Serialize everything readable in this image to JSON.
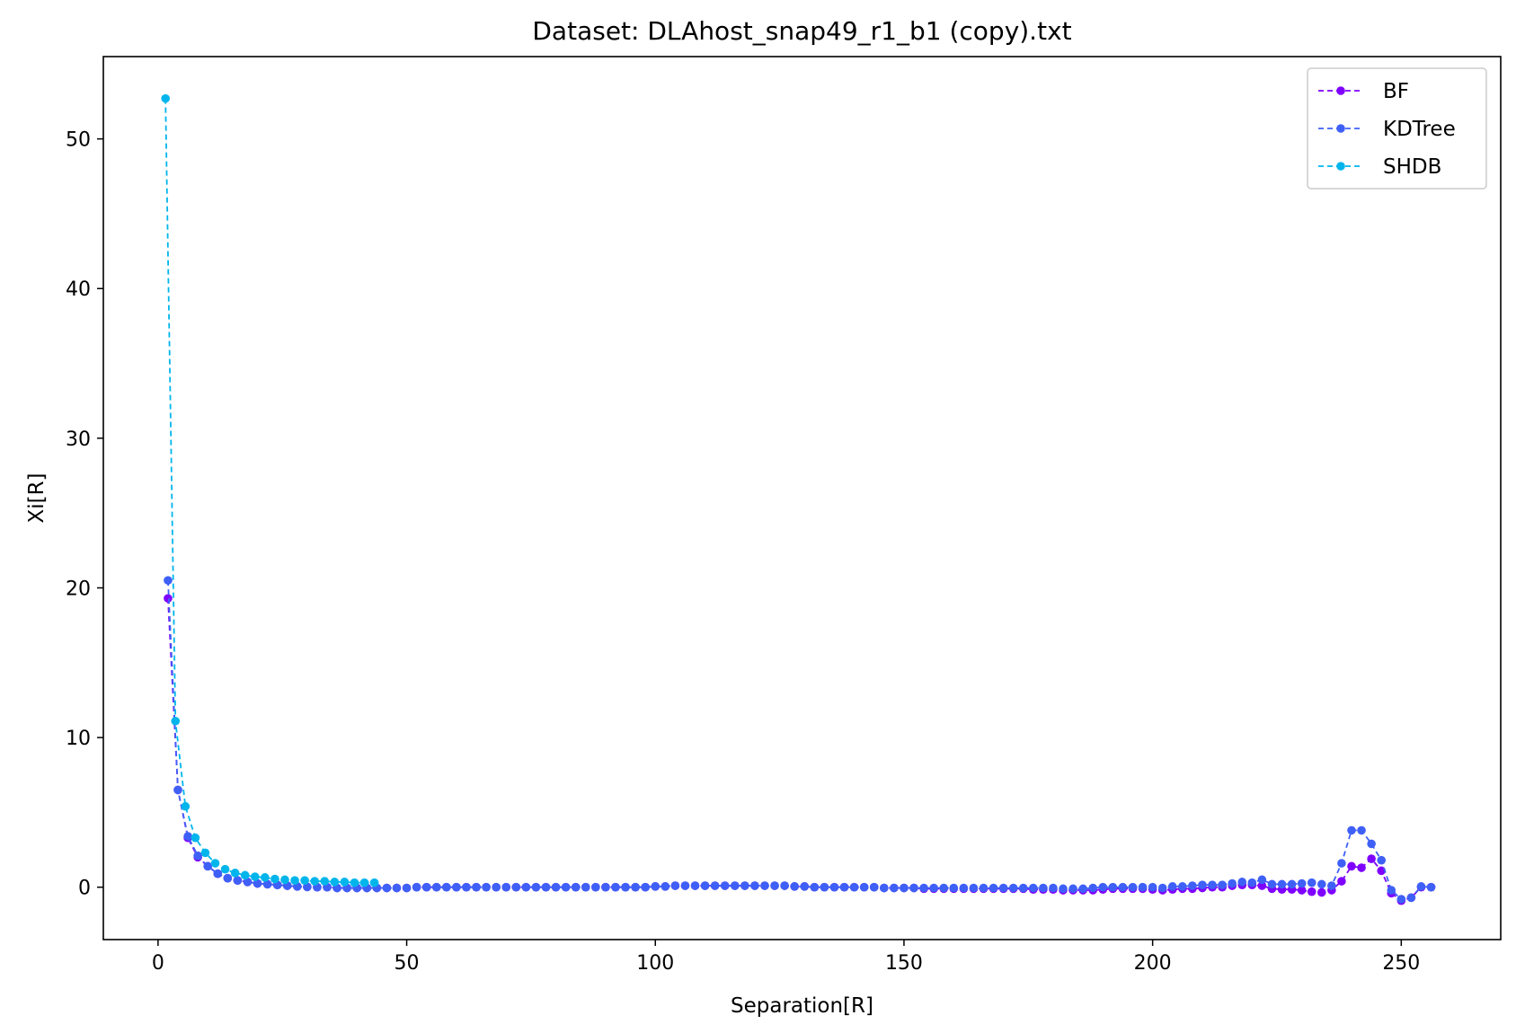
{
  "chart_data": {
    "type": "line",
    "title": "Dataset: DLAhost_snap49_r1_b1 (copy).txt",
    "xlabel": "Separation[R]",
    "ylabel": "Xi[R]",
    "xlim": [
      -11,
      270
    ],
    "ylim": [
      -3.5,
      55.5
    ],
    "xticks": [
      0,
      50,
      100,
      150,
      200,
      250
    ],
    "yticks": [
      0,
      10,
      20,
      30,
      40,
      50
    ],
    "grid": false,
    "legend_position": "top-right",
    "series": [
      {
        "name": "BF",
        "color": "#7f00ff",
        "style": "dashed-marker",
        "x": [
          2,
          4,
          6,
          8,
          10,
          12,
          14,
          16,
          18,
          20,
          22,
          24,
          26,
          28,
          30,
          32,
          34,
          36,
          38,
          40,
          42,
          44,
          46,
          48,
          50,
          52,
          54,
          56,
          58,
          60,
          62,
          64,
          66,
          68,
          70,
          72,
          74,
          76,
          78,
          80,
          82,
          84,
          86,
          88,
          90,
          92,
          94,
          96,
          98,
          100,
          102,
          104,
          106,
          108,
          110,
          112,
          114,
          116,
          118,
          120,
          122,
          124,
          126,
          128,
          130,
          132,
          134,
          136,
          138,
          140,
          142,
          144,
          146,
          148,
          150,
          152,
          154,
          156,
          158,
          160,
          162,
          164,
          166,
          168,
          170,
          172,
          174,
          176,
          178,
          180,
          182,
          184,
          186,
          188,
          190,
          192,
          194,
          196,
          198,
          200,
          202,
          204,
          206,
          208,
          210,
          212,
          214,
          216,
          218,
          220,
          222,
          224,
          226,
          228,
          230,
          232,
          234,
          236,
          238,
          240,
          242,
          244,
          246,
          248,
          250,
          252,
          254,
          256
        ],
        "y": [
          19.3,
          6.5,
          3.3,
          2.0,
          1.4,
          0.9,
          0.6,
          0.45,
          0.35,
          0.25,
          0.2,
          0.15,
          0.1,
          0.05,
          0.02,
          0.0,
          0.0,
          -0.05,
          -0.05,
          -0.05,
          -0.05,
          -0.05,
          -0.05,
          -0.05,
          -0.05,
          0.0,
          0.0,
          0.0,
          0.0,
          0.0,
          0.0,
          0.0,
          0.0,
          0.0,
          0.0,
          0.0,
          0.0,
          0.0,
          0.0,
          0.0,
          0.0,
          0.0,
          0.0,
          0.0,
          0.0,
          0.0,
          0.0,
          0.0,
          0.0,
          0.05,
          0.05,
          0.1,
          0.1,
          0.1,
          0.1,
          0.1,
          0.1,
          0.1,
          0.1,
          0.1,
          0.1,
          0.1,
          0.1,
          0.05,
          0.05,
          0.0,
          0.0,
          0.0,
          0.0,
          0.0,
          0.0,
          0.0,
          -0.05,
          -0.05,
          -0.05,
          -0.05,
          -0.1,
          -0.1,
          -0.1,
          -0.1,
          -0.1,
          -0.1,
          -0.1,
          -0.1,
          -0.1,
          -0.1,
          -0.1,
          -0.15,
          -0.15,
          -0.15,
          -0.2,
          -0.2,
          -0.2,
          -0.2,
          -0.15,
          -0.1,
          -0.1,
          -0.1,
          -0.1,
          -0.15,
          -0.2,
          -0.15,
          -0.1,
          -0.1,
          -0.05,
          0.0,
          0.0,
          0.1,
          0.15,
          0.15,
          0.1,
          -0.1,
          -0.15,
          -0.15,
          -0.2,
          -0.3,
          -0.35,
          -0.2,
          0.4,
          1.4,
          1.3,
          1.9,
          1.1,
          -0.4,
          -0.9,
          -0.7,
          0.0,
          0.0
        ]
      },
      {
        "name": "KDTree",
        "color": "#3f60f6",
        "style": "dashed-marker",
        "x": [
          2,
          4,
          6,
          8,
          10,
          12,
          14,
          16,
          18,
          20,
          22,
          24,
          26,
          28,
          30,
          32,
          34,
          36,
          38,
          40,
          42,
          44,
          46,
          48,
          50,
          52,
          54,
          56,
          58,
          60,
          62,
          64,
          66,
          68,
          70,
          72,
          74,
          76,
          78,
          80,
          82,
          84,
          86,
          88,
          90,
          92,
          94,
          96,
          98,
          100,
          102,
          104,
          106,
          108,
          110,
          112,
          114,
          116,
          118,
          120,
          122,
          124,
          126,
          128,
          130,
          132,
          134,
          136,
          138,
          140,
          142,
          144,
          146,
          148,
          150,
          152,
          154,
          156,
          158,
          160,
          162,
          164,
          166,
          168,
          170,
          172,
          174,
          176,
          178,
          180,
          182,
          184,
          186,
          188,
          190,
          192,
          194,
          196,
          198,
          200,
          202,
          204,
          206,
          208,
          210,
          212,
          214,
          216,
          218,
          220,
          222,
          224,
          226,
          228,
          230,
          232,
          234,
          236,
          238,
          240,
          242,
          244,
          246,
          248,
          250,
          252,
          254,
          256
        ],
        "y": [
          20.5,
          6.5,
          3.4,
          2.1,
          1.4,
          0.9,
          0.6,
          0.45,
          0.35,
          0.25,
          0.2,
          0.15,
          0.1,
          0.05,
          0.02,
          0.0,
          0.0,
          -0.05,
          -0.05,
          -0.05,
          -0.05,
          -0.05,
          -0.05,
          -0.05,
          -0.05,
          0.0,
          0.0,
          0.0,
          0.0,
          0.0,
          0.0,
          0.0,
          0.0,
          0.0,
          0.0,
          0.0,
          0.0,
          0.0,
          0.0,
          0.0,
          0.0,
          0.0,
          0.0,
          0.0,
          0.0,
          0.0,
          0.0,
          0.0,
          0.0,
          0.05,
          0.05,
          0.1,
          0.1,
          0.1,
          0.1,
          0.1,
          0.1,
          0.1,
          0.1,
          0.1,
          0.1,
          0.1,
          0.1,
          0.05,
          0.05,
          0.0,
          0.0,
          0.0,
          0.0,
          0.0,
          0.0,
          0.0,
          -0.05,
          -0.05,
          -0.05,
          -0.05,
          -0.05,
          -0.05,
          -0.05,
          -0.05,
          -0.05,
          -0.05,
          -0.05,
          -0.05,
          -0.05,
          -0.05,
          -0.05,
          -0.05,
          -0.05,
          -0.05,
          -0.1,
          -0.1,
          -0.1,
          -0.05,
          0.0,
          0.0,
          0.0,
          0.0,
          0.0,
          0.0,
          -0.05,
          0.05,
          0.05,
          0.1,
          0.15,
          0.15,
          0.15,
          0.25,
          0.35,
          0.3,
          0.5,
          0.2,
          0.2,
          0.2,
          0.25,
          0.3,
          0.2,
          0.1,
          1.6,
          3.8,
          3.8,
          2.9,
          1.8,
          -0.2,
          -0.8,
          -0.7,
          0.05,
          0.0
        ]
      },
      {
        "name": "SHDB",
        "color": "#00b5eb",
        "style": "dashed-marker",
        "x": [
          1.5,
          3.5,
          5.5,
          7.5,
          9.5,
          11.5,
          13.5,
          15.5,
          17.5,
          19.5,
          21.5,
          23.5,
          25.5,
          27.5,
          29.5,
          31.5,
          33.5,
          35.5,
          37.5,
          39.5,
          41.5,
          43.5
        ],
        "y": [
          52.7,
          11.1,
          5.4,
          3.3,
          2.3,
          1.6,
          1.2,
          0.95,
          0.8,
          0.7,
          0.65,
          0.55,
          0.5,
          0.45,
          0.45,
          0.4,
          0.4,
          0.35,
          0.35,
          0.3,
          0.3,
          0.3
        ]
      }
    ]
  }
}
